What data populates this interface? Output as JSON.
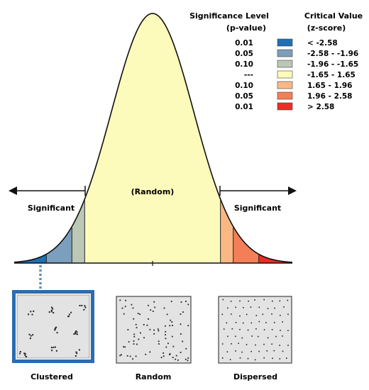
{
  "legend": {
    "pvalue_header": [
      "Significance Level",
      "(p-value)"
    ],
    "zscore_header": [
      "Critical Value",
      "(z-score)"
    ],
    "rows": [
      {
        "p": "0.01",
        "z": "< -2.58",
        "color": "#1f6fb3"
      },
      {
        "p": "0.05",
        "z": "-2.58 - -1.96",
        "color": "#7b9fbd"
      },
      {
        "p": "0.10",
        "z": "-1.96 - -1.65",
        "color": "#bcc7b6"
      },
      {
        "p": "---",
        "z": "-1.65 - 1.65",
        "color": "#fdfbbb"
      },
      {
        "p": "0.10",
        "z": "1.65 - 1.96",
        "color": "#fbb885"
      },
      {
        "p": "0.05",
        "z": "1.96 - 2.58",
        "color": "#f47f57"
      },
      {
        "p": "0.01",
        "z": "> 2.58",
        "color": "#ed2c24"
      }
    ]
  },
  "curve_labels": {
    "center": "(Random)",
    "left": "Significant",
    "right": "Significant"
  },
  "panels": [
    {
      "label": "Clustered",
      "selected": true
    },
    {
      "label": "Random",
      "selected": false
    },
    {
      "label": "Dispersed",
      "selected": false
    }
  ],
  "colors": {
    "selected_border": "#2a6db0",
    "panel_fill": "#e3e3e3"
  }
}
